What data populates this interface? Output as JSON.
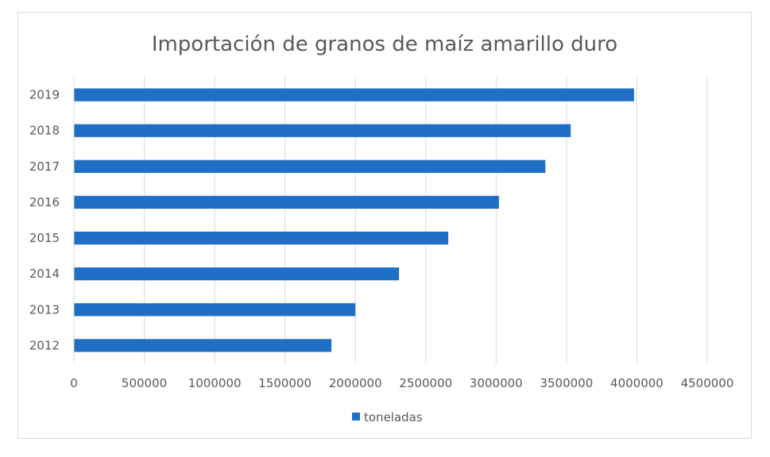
{
  "chart_data": {
    "type": "bar",
    "orientation": "horizontal",
    "title": "Importación de granos de maíz amarillo duro",
    "xlabel": "",
    "ylabel": "",
    "categories": [
      "2012",
      "2013",
      "2014",
      "2015",
      "2016",
      "2017",
      "2018",
      "2019"
    ],
    "series": [
      {
        "name": "toneladas",
        "color": "#1f6fc6",
        "values": [
          1830000,
          2000000,
          2310000,
          2660000,
          3020000,
          3350000,
          3530000,
          3980000
        ]
      }
    ],
    "x_ticks": [
      "0",
      "500000",
      "1000000",
      "1500000",
      "2000000",
      "2500000",
      "3000000",
      "3500000",
      "4000000",
      "4500000"
    ],
    "xlim": [
      0,
      4500000
    ],
    "grid": "vertical",
    "legend": "bottom-center"
  }
}
